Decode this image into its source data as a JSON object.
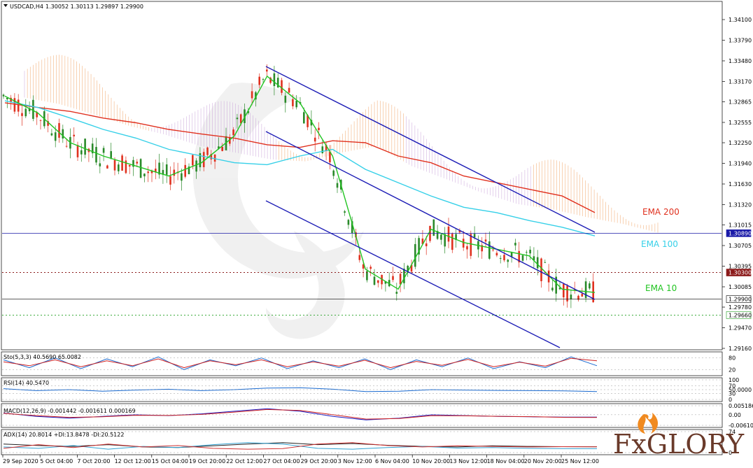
{
  "header": {
    "symbol": "USDCAD,H4",
    "ohlc": "1.30052 1.30113 1.29897 1.29900"
  },
  "brand": {
    "name": "FxGLORY",
    "logo": "flame-icon"
  },
  "colors": {
    "ema200": "#e0311f",
    "ema100": "#36d0e8",
    "ema10": "#22c422",
    "channel": "#1b1bb5",
    "resistance": "#1a1aa8",
    "support": "#22a022",
    "dashed_level": "#8b1a1a",
    "cloud_up": "#f0a060",
    "cloud_down": "#c8a0d8"
  },
  "chart_data": [
    {
      "type": "line",
      "title": "USDCAD,H4",
      "x_ticks": [
        "29 Sep 2020",
        "5 Oct 04:00",
        "7 Oct 20:00",
        "12 Oct 12:00",
        "15 Oct 04:00",
        "19 Oct 20:00",
        "22 Oct 12:00",
        "27 Oct 04:00",
        "29 Oct 20:00",
        "3 Nov 12:00",
        "6 Nov 04:00",
        "10 Nov 20:00",
        "13 Nov 12:00",
        "18 Nov 04:00",
        "20 Nov 20:00",
        "25 Nov 12:00"
      ],
      "y_ticks": [
        "1.34100",
        "1.33790",
        "1.33480",
        "1.33170",
        "1.32865",
        "1.32555",
        "1.32250",
        "1.31940",
        "1.31630",
        "1.31320",
        "1.31015",
        "1.30705",
        "1.30395",
        "1.30085",
        "1.29780",
        "1.29470",
        "1.29160"
      ],
      "ylim": [
        1.2916,
        1.341
      ],
      "price_labels": [
        {
          "text": "1.30890",
          "value": 1.3089,
          "kind": "resistance"
        },
        {
          "text": "1.30300",
          "value": 1.303,
          "kind": "dashed_level"
        },
        {
          "text": "1.29900",
          "value": 1.299,
          "kind": "current"
        },
        {
          "text": "1.29660",
          "value": 1.2966,
          "kind": "support"
        }
      ],
      "series": [
        {
          "name": "EMA 200",
          "color": "#e0311f",
          "values": [
            1.3285,
            1.3278,
            1.3272,
            1.3262,
            1.3255,
            1.3245,
            1.3238,
            1.3232,
            1.3222,
            1.3218,
            1.3228,
            1.3225,
            1.3205,
            1.3195,
            1.3175,
            1.3165,
            1.3155,
            1.3145,
            1.312
          ]
        },
        {
          "name": "EMA 100",
          "color": "#36d0e8",
          "values": [
            1.3288,
            1.3278,
            1.3262,
            1.3245,
            1.3232,
            1.3215,
            1.3205,
            1.3195,
            1.3192,
            1.3205,
            1.3215,
            1.3185,
            1.3165,
            1.3145,
            1.3128,
            1.312,
            1.3108,
            1.3098,
            1.3085
          ]
        },
        {
          "name": "EMA 10",
          "color": "#22c422",
          "values": [
            1.3295,
            1.327,
            1.3225,
            1.3205,
            1.319,
            1.3175,
            1.3195,
            1.3235,
            1.3325,
            1.3285,
            1.3205,
            1.3035,
            1.3005,
            1.3095,
            1.3075,
            1.3065,
            1.3055,
            1.3005,
            1.3
          ]
        }
      ],
      "annotations": [
        "EMA 200",
        "EMA 100",
        "EMA 10"
      ]
    },
    {
      "type": "line",
      "title": "Sto(5,3,3) 40.5690 65.0082",
      "y_ticks": [
        "80",
        "20"
      ],
      "ylim": [
        0,
        100
      ],
      "series": [
        {
          "name": "main",
          "color": "#1a6ad0",
          "values": [
            70,
            30,
            80,
            25,
            75,
            35,
            85,
            20,
            70,
            40,
            80,
            25,
            65,
            30,
            75,
            20,
            70,
            35,
            80,
            25,
            60,
            30,
            85,
            40
          ]
        },
        {
          "name": "signal",
          "color": "#d02020",
          "values": [
            60,
            40,
            70,
            35,
            65,
            40,
            75,
            30,
            65,
            45,
            70,
            35,
            60,
            38,
            68,
            30,
            62,
            42,
            72,
            35,
            58,
            38,
            78,
            65
          ]
        }
      ]
    },
    {
      "type": "line",
      "title": "RSI(14) 40.5470",
      "y_ticks": [
        "100",
        "70",
        "50.0000",
        "30",
        "0"
      ],
      "ylim": [
        0,
        100
      ],
      "series": [
        {
          "name": "RSI",
          "color": "#1a6ad0",
          "values": [
            55,
            45,
            50,
            42,
            48,
            52,
            45,
            50,
            58,
            60,
            52,
            40,
            42,
            50,
            48,
            46,
            45,
            44,
            40.5
          ]
        }
      ]
    },
    {
      "type": "line",
      "title": "MACD(12,26,9) -0.001442 -0.001611 0.000169",
      "y_ticks": [
        "0.005186",
        "0.00",
        "-0.006103"
      ],
      "ylim": [
        -0.006103,
        0.005186
      ],
      "series": [
        {
          "name": "MACD",
          "color": "#1a1ac0",
          "values": [
            0.001,
            -0.001,
            -0.002,
            -0.001,
            0.0,
            -0.0005,
            0.0005,
            0.002,
            0.0035,
            0.002,
            -0.001,
            -0.003,
            -0.002,
            0.0,
            -0.0005,
            -0.001,
            -0.0012,
            -0.0014,
            -0.0014
          ]
        },
        {
          "name": "Signal",
          "color": "#d02020",
          "values": [
            0.0008,
            -0.0005,
            -0.0015,
            -0.0012,
            -0.0003,
            -0.0004,
            0.0002,
            0.0015,
            0.003,
            0.0025,
            0.0,
            -0.0025,
            -0.0022,
            -0.0005,
            -0.0006,
            -0.0009,
            -0.0011,
            -0.0015,
            -0.0016
          ]
        }
      ]
    },
    {
      "type": "line",
      "title": "ADX(14) 20.8014 +DI:13.8478 -DI:20.5122",
      "y_ticks": [
        "74",
        "0"
      ],
      "ylim": [
        0,
        74
      ],
      "series": [
        {
          "name": "ADX",
          "color": "#202020",
          "values": [
            30,
            25,
            22,
            28,
            20,
            18,
            24,
            30,
            35,
            28,
            32,
            26,
            22,
            20,
            24,
            22,
            21,
            20.8
          ]
        },
        {
          "name": "+DI",
          "color": "#30a0d0",
          "values": [
            20,
            15,
            25,
            12,
            22,
            18,
            28,
            35,
            30,
            15,
            12,
            18,
            22,
            16,
            18,
            15,
            14,
            13.8
          ]
        },
        {
          "name": "-DI",
          "color": "#d03030",
          "values": [
            15,
            28,
            18,
            30,
            20,
            25,
            15,
            12,
            14,
            30,
            35,
            25,
            20,
            24,
            22,
            20,
            21,
            20.5
          ]
        }
      ]
    }
  ]
}
